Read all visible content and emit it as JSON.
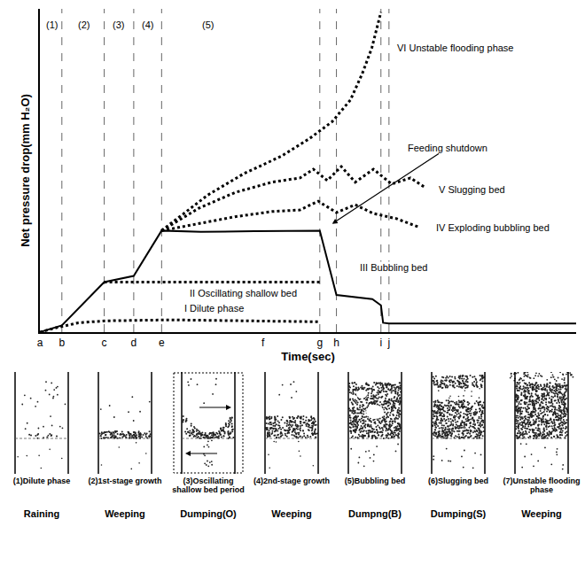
{
  "chart_data": {
    "type": "line",
    "x_label": "Time(sec)",
    "y_label": "Net pressure drop(mm H₂O)",
    "xlim": [
      0,
      100
    ],
    "ylim": [
      0,
      100
    ],
    "xticks": [
      {
        "value": 0,
        "label": "a"
      },
      {
        "value": 4.1,
        "label": "b"
      },
      {
        "value": 12,
        "label": "c"
      },
      {
        "value": 17.5,
        "label": "d"
      },
      {
        "value": 22.7,
        "label": "e"
      },
      {
        "value": 41.6,
        "label": "f"
      },
      {
        "value": 52.2,
        "label": "g"
      },
      {
        "value": 55.3,
        "label": "h"
      },
      {
        "value": 63.6,
        "label": "i"
      },
      {
        "value": 65.1,
        "label": "j"
      }
    ],
    "yticks": [],
    "tick_labels": "x",
    "grid": false,
    "vlines": [
      4.1,
      12,
      17.5,
      22.7,
      52.2,
      55.3,
      63.6,
      65.1
    ],
    "series": [
      {
        "line_style": "solid",
        "color": "#000000",
        "x": [
          0,
          4.1,
          12,
          17.5,
          22.7,
          30,
          40,
          52.2,
          55.3,
          62,
          63.6,
          64.0,
          65.1,
          100
        ],
        "values": [
          0,
          2.1,
          15.5,
          17.4,
          31.4,
          31.0,
          31.2,
          31.4,
          11.5,
          10.2,
          8.3,
          2.9,
          2.7,
          2.7
        ]
      },
      {
        "line_style": "dotted",
        "color": "#000000",
        "x": [
          0,
          2.9,
          7.2,
          12.4,
          24.4,
          38.1,
          52.2
        ],
        "values": [
          0,
          1.3,
          2.9,
          3.5,
          3.8,
          3.5,
          3.2
        ]
      },
      {
        "line_style": "dotted",
        "color": "#000000",
        "x": [
          12,
          52.2
        ],
        "values": [
          15.5,
          15.5
        ]
      },
      {
        "line_style": "dotted",
        "color": "#000000",
        "x": [
          22.7,
          29.6,
          36.4,
          43.3,
          48.5,
          51.9,
          55.3,
          58.8,
          62.2,
          66.5,
          70.8
        ],
        "values": [
          31.4,
          33.5,
          35.7,
          37.3,
          37.8,
          40.5,
          37.0,
          39.4,
          36.7,
          35.1,
          32.4
        ]
      },
      {
        "line_style": "dotted",
        "color": "#000000",
        "x": [
          22.7,
          29.6,
          36.4,
          43.3,
          48.5,
          51.0,
          53.6,
          56.2,
          58.8,
          62.2,
          65.6,
          69.1,
          71.6
        ],
        "values": [
          31.4,
          38.3,
          43.2,
          46.4,
          47.7,
          50.4,
          46.9,
          51.2,
          46.4,
          50.4,
          45.8,
          47.7,
          45.0
        ]
      },
      {
        "line_style": "dotted",
        "color": "#000000",
        "x": [
          22.7,
          31.3,
          38.1,
          45.0,
          50.2,
          54.5,
          57.9,
          60.1,
          61.9,
          63.1,
          63.6
        ],
        "values": [
          31.4,
          42.4,
          49.1,
          54.4,
          59.8,
          65.1,
          71.8,
          79.9,
          87.9,
          96.0,
          99.0
        ]
      }
    ],
    "annotations": [
      {
        "text": "(1)",
        "x": 2.2,
        "y": 95
      },
      {
        "text": "(2)",
        "x": 8.1,
        "y": 95
      },
      {
        "text": "(3)",
        "x": 14.7,
        "y": 95
      },
      {
        "text": "(4)",
        "x": 20.1,
        "y": 95
      },
      {
        "text": "(5)",
        "x": 31.3,
        "y": 95
      },
      {
        "text": "VI Unstable flooding phase",
        "x": 77.5,
        "y": 88
      },
      {
        "text": "V Slugging bed",
        "x": 80.5,
        "y": 44
      },
      {
        "text": "IV Exploding bubbling bed",
        "x": 84.5,
        "y": 32.4
      },
      {
        "text": "III Bubbling bed",
        "x": 66,
        "y": 20
      },
      {
        "text": "II Oscillating shallow bed",
        "x": 38,
        "y": 12
      },
      {
        "text": "I Dilute phase",
        "x": 32.5,
        "y": 7.3
      },
      {
        "text": "Feeding shutdown",
        "x": 76,
        "y": 57,
        "arrow_to": [
          54.5,
          33.5
        ]
      }
    ]
  },
  "illustrations": [
    {
      "caption": "(1)Dilute phase",
      "regime": "Raining"
    },
    {
      "caption": "(2)1st-stage growth",
      "regime": "Weeping"
    },
    {
      "caption": "(3)Oscillating shallow bed period",
      "regime": "Dumping(O)"
    },
    {
      "caption": "(4)2nd-stage growth",
      "regime": "Weeping"
    },
    {
      "caption": "(5)Bubbling bed",
      "regime": "Dumpng(B)"
    },
    {
      "caption": "(6)Slugging bed",
      "regime": "Dumping(S)"
    },
    {
      "caption": "(7)Unstable flooding phase",
      "regime": "Weeping"
    }
  ]
}
